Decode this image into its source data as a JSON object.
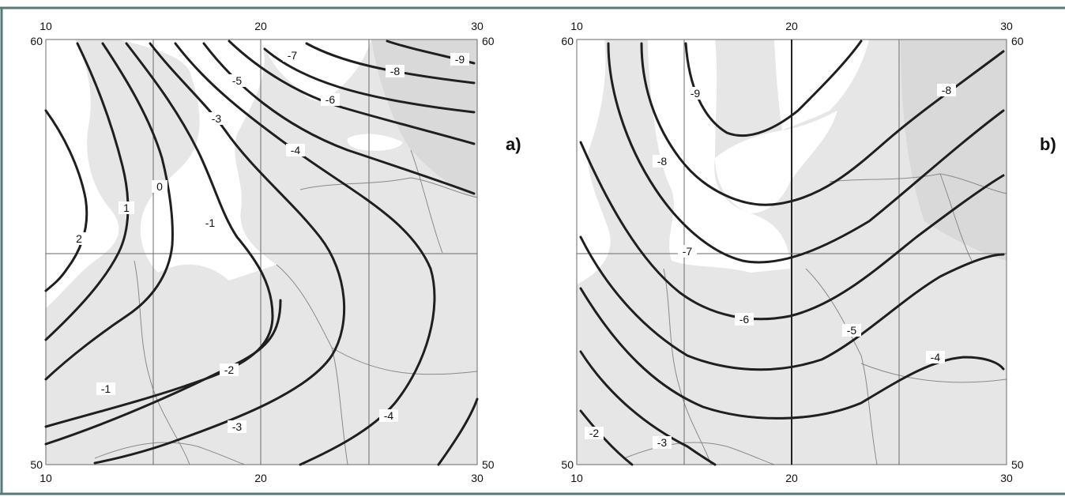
{
  "panels": [
    {
      "tag": "a)",
      "lon_ticks_top": [
        "10",
        "20",
        "30"
      ],
      "lon_ticks_bottom": [
        "10",
        "20",
        "30"
      ],
      "lat_ticks_left": [
        "60",
        "50"
      ],
      "lat_ticks_right": [
        "60",
        "50"
      ],
      "isolines": [
        {
          "value": "-9"
        },
        {
          "value": "-8"
        },
        {
          "value": "-7"
        },
        {
          "value": "-6"
        },
        {
          "value": "-5"
        },
        {
          "value": "-4"
        },
        {
          "value": "-3"
        },
        {
          "value": "-1"
        },
        {
          "value": "0"
        },
        {
          "value": "1"
        },
        {
          "value": "2"
        },
        {
          "value": "-1"
        },
        {
          "value": "-2"
        },
        {
          "value": "-3"
        },
        {
          "value": "-4"
        }
      ]
    },
    {
      "tag": "b)",
      "lon_ticks_top": [
        "10",
        "20",
        "30"
      ],
      "lon_ticks_bottom": [
        "10",
        "20",
        "30"
      ],
      "lat_ticks_left": [
        "60",
        "50"
      ],
      "lat_ticks_right": [
        "60",
        "50"
      ],
      "isolines": [
        {
          "value": "-9"
        },
        {
          "value": "-8"
        },
        {
          "value": "-8"
        },
        {
          "value": "-7"
        },
        {
          "value": "-6"
        },
        {
          "value": "-5"
        },
        {
          "value": "-4"
        },
        {
          "value": "-3"
        },
        {
          "value": "-2"
        }
      ]
    }
  ],
  "colors": {
    "land": "#e6e6e6",
    "land_dark": "#d8d8d8",
    "sea": "#ffffff",
    "isoline": "#1f1f1f",
    "frame": "#5a7a7a"
  }
}
